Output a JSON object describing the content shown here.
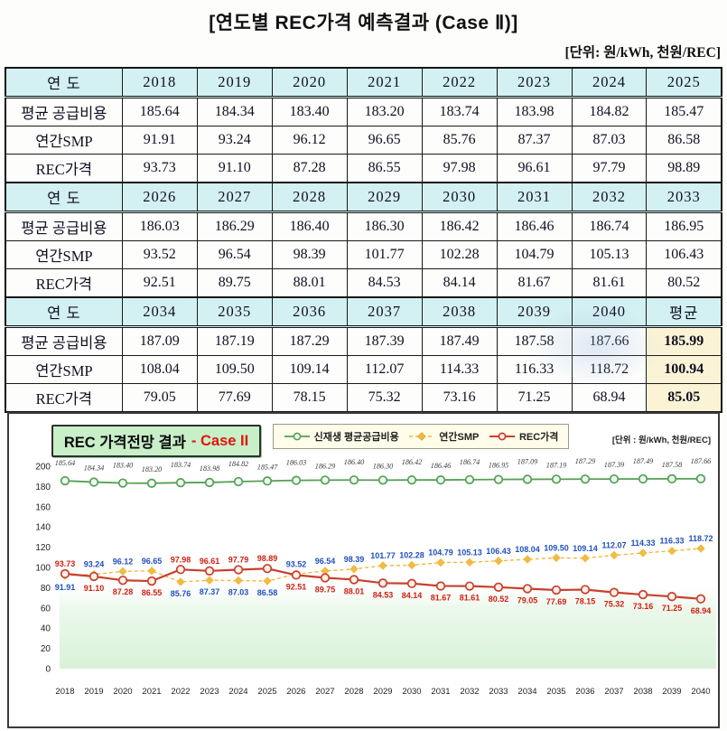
{
  "page": {
    "title": "[연도별 REC가격 예측결과 (Case Ⅱ)]",
    "unit_note": "[단위: 원/kWh, 천원/REC]"
  },
  "table": {
    "row_labels": [
      "연 도",
      "평균 공급비용",
      "연간SMP",
      "REC가격"
    ],
    "avg_label": "평균",
    "blocks": [
      {
        "years": [
          "2018",
          "2019",
          "2020",
          "2021",
          "2022",
          "2023",
          "2024",
          "2025"
        ],
        "supply": [
          "185.64",
          "184.34",
          "183.40",
          "183.20",
          "183.74",
          "183.98",
          "184.82",
          "185.47"
        ],
        "smp": [
          "91.91",
          "93.24",
          "96.12",
          "96.65",
          "85.76",
          "87.37",
          "87.03",
          "86.58"
        ],
        "rec": [
          "93.73",
          "91.10",
          "87.28",
          "86.55",
          "97.98",
          "96.61",
          "97.79",
          "98.89"
        ]
      },
      {
        "years": [
          "2026",
          "2027",
          "2028",
          "2029",
          "2030",
          "2031",
          "2032",
          "2033"
        ],
        "supply": [
          "186.03",
          "186.29",
          "186.40",
          "186.30",
          "186.42",
          "186.46",
          "186.74",
          "186.95"
        ],
        "smp": [
          "93.52",
          "96.54",
          "98.39",
          "101.77",
          "102.28",
          "104.79",
          "105.13",
          "106.43"
        ],
        "rec": [
          "92.51",
          "89.75",
          "88.01",
          "84.53",
          "84.14",
          "81.67",
          "81.61",
          "80.52"
        ]
      },
      {
        "years": [
          "2034",
          "2035",
          "2036",
          "2037",
          "2038",
          "2039",
          "2040",
          "평균"
        ],
        "supply": [
          "187.09",
          "187.19",
          "187.29",
          "187.39",
          "187.49",
          "187.58",
          "187.66",
          "185.99"
        ],
        "smp": [
          "108.04",
          "109.50",
          "109.14",
          "112.07",
          "114.33",
          "116.33",
          "118.72",
          "100.94"
        ],
        "rec": [
          "79.05",
          "77.69",
          "78.15",
          "75.32",
          "73.16",
          "71.25",
          "68.94",
          "85.05"
        ]
      }
    ]
  },
  "chart": {
    "title": "REC 가격전망 결과",
    "case_label": "- Case II",
    "unit_note": "[단위 : 원/kWh, 천원/REC]",
    "legend": [
      "신재생 평균공급비용",
      "연간SMP",
      "REC가격"
    ],
    "colors": {
      "supply_line": "#55a055",
      "smp_line": "#f0b83d",
      "rec_line": "#c8402c",
      "supply_label": "#3c3c3c",
      "smp_label": "#2050c0",
      "rec_label": "#d02010",
      "title_bg": "#c8efc8",
      "legend_bg": "#fffdea",
      "header_bg": "#d3f0f2",
      "avg_bg": "#fbf3d6",
      "plot_fill": "#d9f2d9"
    }
  },
  "chart_data": {
    "type": "line",
    "title": "REC 가격전망 결과 - Case II",
    "xlabel": "",
    "ylabel": "",
    "ylim": [
      0,
      200
    ],
    "yticks": [
      0,
      20,
      40,
      60,
      80,
      100,
      120,
      140,
      160,
      180,
      200
    ],
    "grid": false,
    "legend_position": "top",
    "x": [
      2018,
      2019,
      2020,
      2021,
      2022,
      2023,
      2024,
      2025,
      2026,
      2027,
      2028,
      2029,
      2030,
      2031,
      2032,
      2033,
      2034,
      2035,
      2036,
      2037,
      2038,
      2039,
      2040
    ],
    "series": [
      {
        "id": "supply",
        "name": "신재생 평균공급비용",
        "color": "#55a055",
        "label_color": "#3c3c3c",
        "marker": "circle",
        "marker_fill": "#eefaee",
        "width": 1.8,
        "dash": "",
        "values": [
          185.64,
          184.34,
          183.4,
          183.2,
          183.74,
          183.98,
          184.82,
          185.47,
          186.03,
          186.29,
          186.4,
          186.3,
          186.42,
          186.46,
          186.74,
          186.95,
          187.09,
          187.19,
          187.29,
          187.39,
          187.49,
          187.58,
          187.66
        ]
      },
      {
        "id": "smp",
        "name": "연간SMP",
        "color": "#f0b83d",
        "label_color": "#2050c0",
        "marker": "diamond",
        "marker_fill": "#f2bc42",
        "width": 1.4,
        "dash": "4 3",
        "values": [
          91.91,
          93.24,
          96.12,
          96.65,
          85.76,
          87.37,
          87.03,
          86.58,
          93.52,
          96.54,
          98.39,
          101.77,
          102.28,
          104.79,
          105.13,
          106.43,
          108.04,
          109.5,
          109.14,
          112.07,
          114.33,
          116.33,
          118.72
        ]
      },
      {
        "id": "rec",
        "name": "REC가격",
        "color": "#c8402c",
        "label_color": "#d02010",
        "marker": "circle",
        "marker_fill": "#fdf0ea",
        "width": 2.2,
        "dash": "",
        "values": [
          93.73,
          91.1,
          87.28,
          86.55,
          97.98,
          96.61,
          97.79,
          98.89,
          92.51,
          89.75,
          88.01,
          84.53,
          84.14,
          81.67,
          81.61,
          80.52,
          79.05,
          77.69,
          78.15,
          75.32,
          73.16,
          71.25,
          68.94
        ]
      }
    ]
  }
}
